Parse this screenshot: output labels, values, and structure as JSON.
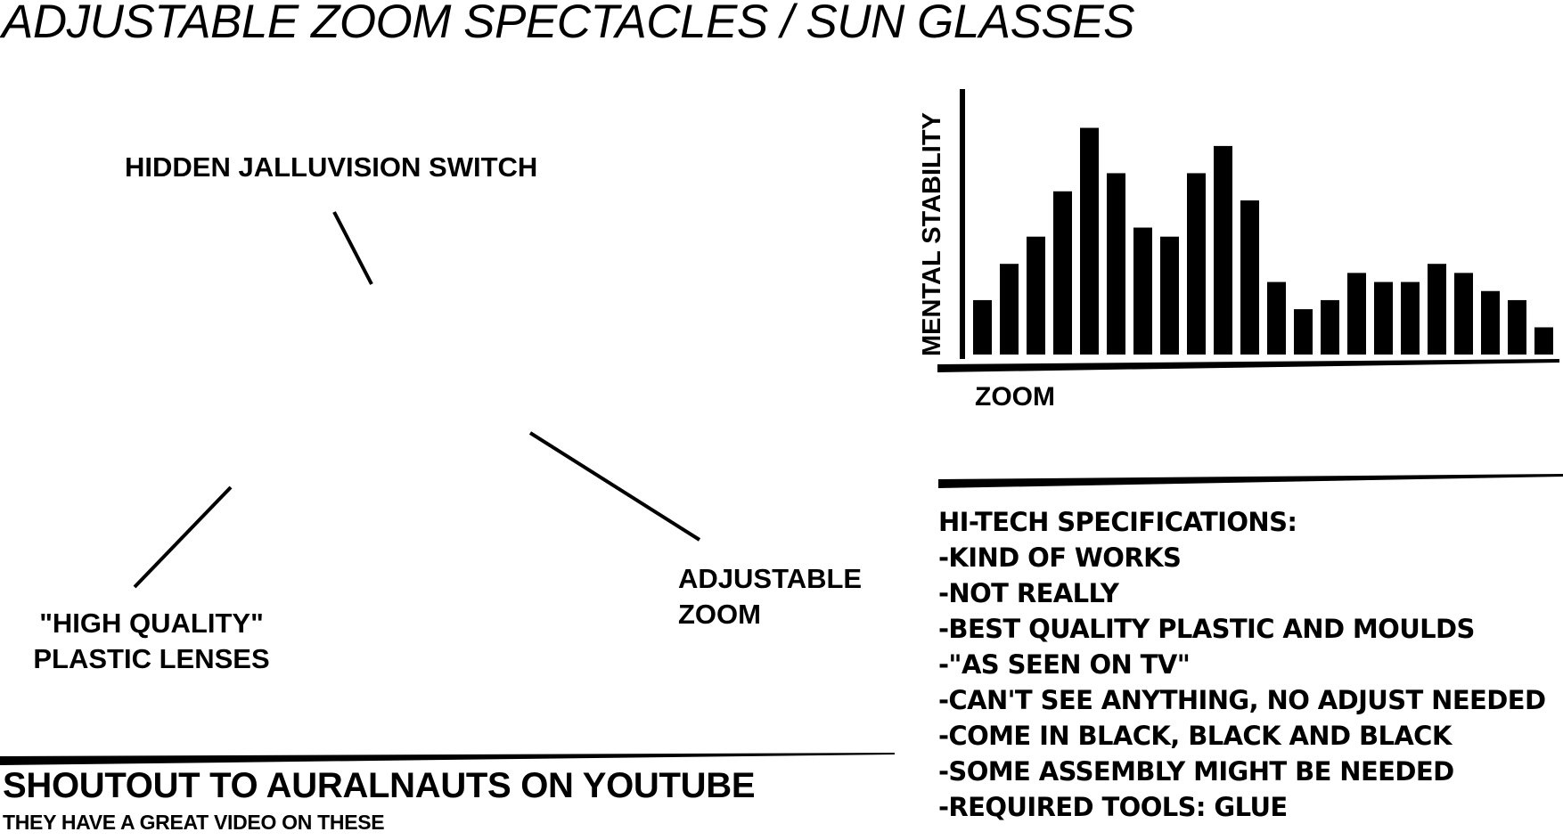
{
  "title": "ADJUSTABLE ZOOM SPECTACLES / SUN GLASSES",
  "callouts": {
    "switch": "HIDDEN JALLUVISION SWITCH",
    "lenses_line1": "\"HIGH QUALITY\"",
    "lenses_line2": "PLASTIC LENSES",
    "zoom_line1": "ADJUSTABLE",
    "zoom_line2": "ZOOM"
  },
  "chart_data": {
    "type": "bar",
    "xlabel": "ZOOM",
    "ylabel": "MENTAL STABILITY",
    "values": [
      3,
      5,
      6.5,
      9,
      12.5,
      10,
      7,
      6.5,
      10,
      11.5,
      8.5,
      4,
      2.5,
      3,
      4.5,
      4,
      4,
      5,
      4.5,
      3.5,
      3,
      1.5
    ],
    "ylim": [
      0,
      14
    ],
    "grid": false,
    "color": "#000000"
  },
  "specs": {
    "heading": "HI-TECH SPECIFICATIONS:",
    "items": [
      "-KIND OF WORKS",
      "-NOT REALLY",
      "-BEST QUALITY PLASTIC AND MOULDS",
      "-\"AS SEEN ON TV\"",
      "-CAN'T SEE ANYTHING, NO ADJUST NEEDED",
      "-COME IN BLACK, BLACK AND BLACK",
      "-SOME ASSEMBLY MIGHT BE NEEDED",
      "-REQUIRED TOOLS: GLUE"
    ]
  },
  "shoutout": {
    "title": "SHOUTOUT TO AURALNAUTS ON YOUTUBE",
    "subtitle": "THEY HAVE A GREAT VIDEO ON THESE"
  }
}
